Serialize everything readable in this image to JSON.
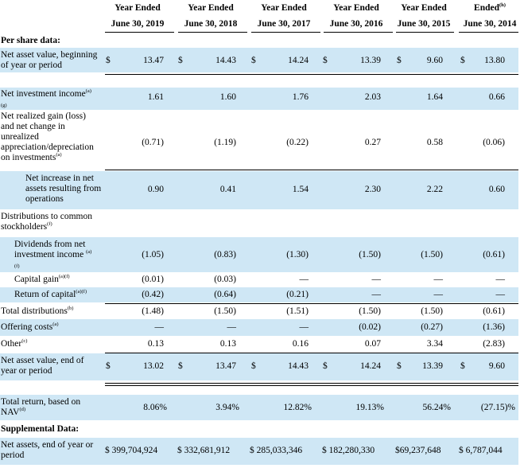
{
  "headers": [
    {
      "line1": "Year Ended",
      "line2": "June 30, 2019"
    },
    {
      "line1": "Year Ended",
      "line2": "June 30, 2018"
    },
    {
      "line1": "Year Ended",
      "line2": "June 30, 2017"
    },
    {
      "line1": "Year Ended",
      "line2": "June 30, 2016"
    },
    {
      "line1": "Year Ended",
      "line2": "June 30, 2015"
    },
    {
      "line1": "Ended",
      "line1_sup": "(h)",
      "line2": "June 30, 2014"
    }
  ],
  "sections": {
    "per_share": "Per share data:",
    "distributions": "Distributions to common stockholders",
    "distributions_sup": "(f)",
    "supplemental": "Supplemental Data:"
  },
  "currency_symbol": "$",
  "rows": {
    "nav_begin": {
      "label": "Net asset value, beginning of year or period",
      "values": [
        "13.47",
        "14.43",
        "14.24",
        "13.39",
        "9.60",
        "13.80"
      ]
    },
    "nii": {
      "label": "Net investment income",
      "label_sup": "(a)",
      "label_sup2": "(g)",
      "values": [
        "1.61",
        "1.60",
        "1.76",
        "2.03",
        "1.64",
        "0.66"
      ]
    },
    "realized": {
      "label": "Net realized gain (loss) and net change in unrealized appreciation/depreciation on investments",
      "label_sup": "(a)",
      "values": [
        "(0.71)",
        "(1.19)",
        "(0.22)",
        "0.27",
        "0.58",
        "(0.06)"
      ]
    },
    "net_increase": {
      "label": "Net increase in net assets resulting from operations",
      "values": [
        "0.90",
        "0.41",
        "1.54",
        "2.30",
        "2.22",
        "0.60"
      ]
    },
    "dividends": {
      "label": "Dividends from net investment income",
      "label_sup": "(a)",
      "label_sup2": "(f)",
      "values": [
        "(1.05)",
        "(0.83)",
        "(1.30)",
        "(1.50)",
        "(1.50)",
        "(0.61)"
      ]
    },
    "capital_gain": {
      "label": "Capital gain",
      "label_sup": "(a)(f)",
      "values": [
        "(0.01)",
        "(0.03)",
        "—",
        "—",
        "—",
        "—"
      ]
    },
    "return_capital": {
      "label": "Return of capital",
      "label_sup": "(a)(f)",
      "values": [
        "(0.42)",
        "(0.64)",
        "(0.21)",
        "—",
        "—",
        "—"
      ]
    },
    "total_dist": {
      "label": "Total distributions",
      "label_sup": "(b)",
      "values": [
        "(1.48)",
        "(1.50)",
        "(1.51)",
        "(1.50)",
        "(1.50)",
        "(0.61)"
      ]
    },
    "offering": {
      "label": "Offering costs",
      "label_sup": "(a)",
      "values": [
        "—",
        "—",
        "—",
        "(0.02)",
        "(0.27)",
        "(1.36)"
      ]
    },
    "other": {
      "label": "Other",
      "label_sup": "(c)",
      "values": [
        "0.13",
        "0.13",
        "0.16",
        "0.07",
        "3.34",
        "(2.83)"
      ]
    },
    "nav_end": {
      "label": "Net asset value, end of year or period",
      "values": [
        "13.02",
        "13.47",
        "14.43",
        "14.24",
        "13.39",
        "9.60"
      ]
    },
    "total_return": {
      "label": "Total return, based on NAV",
      "label_sup": "(d)",
      "values": [
        "8.06%",
        "3.94%",
        "12.82%",
        "19.13%",
        "56.24%",
        "(27.15)%"
      ]
    },
    "net_assets": {
      "label": "Net assets, end of year or period",
      "values": [
        "$ 399,704,924",
        "$ 332,681,912",
        "$ 285,033,346",
        "$ 182,280,330",
        "$69,237,648",
        "$ 6,787,044"
      ]
    }
  }
}
